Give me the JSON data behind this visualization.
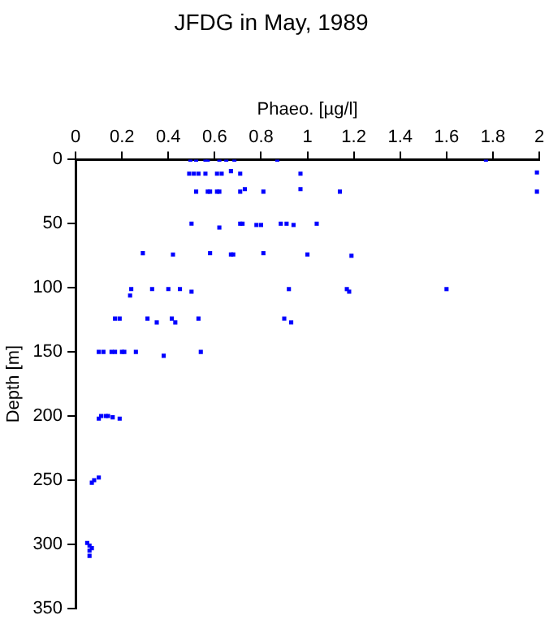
{
  "chart_data": {
    "type": "scatter",
    "title": "JFDG in May, 1989",
    "xlabel": "Phaeo. [µg/l]",
    "ylabel": "Depth [m]",
    "xlim": [
      0,
      2
    ],
    "xticks": [
      0,
      0.2,
      0.4,
      0.6,
      0.8,
      1,
      1.2,
      1.4,
      1.6,
      1.8,
      2
    ],
    "ylim": [
      350,
      0
    ],
    "yticks": [
      0,
      50,
      100,
      150,
      200,
      250,
      300,
      350
    ],
    "grid": false,
    "legend": false,
    "marker": "square",
    "series": [
      {
        "color": "#0000ff",
        "x": [
          0.495,
          0.52,
          0.56,
          0.57,
          0.62,
          0.65,
          0.685,
          0.87,
          1.77,
          0.49,
          0.51,
          0.53,
          0.56,
          0.61,
          0.63,
          0.67,
          0.71,
          0.97,
          1.99,
          0.52,
          0.57,
          0.58,
          0.61,
          0.62,
          0.71,
          0.73,
          0.81,
          0.97,
          1.14,
          1.99,
          0.5,
          0.62,
          0.71,
          0.72,
          0.78,
          0.8,
          0.885,
          0.91,
          0.94,
          1.04,
          0.29,
          0.42,
          0.58,
          0.67,
          0.68,
          0.81,
          1.0,
          1.19,
          0.24,
          0.235,
          0.33,
          0.4,
          0.45,
          0.5,
          0.92,
          1.17,
          1.18,
          1.6,
          0.17,
          0.19,
          0.31,
          0.35,
          0.415,
          0.43,
          0.53,
          0.9,
          0.93,
          0.1,
          0.12,
          0.155,
          0.17,
          0.2,
          0.21,
          0.26,
          0.38,
          0.54,
          0.1,
          0.11,
          0.13,
          0.14,
          0.16,
          0.19,
          0.07,
          0.08,
          0.1,
          0.05,
          0.06,
          0.06,
          0.07,
          0.06
        ],
        "values": [
          0,
          0,
          0,
          0,
          0,
          0,
          0,
          0,
          0,
          11,
          11,
          11,
          11,
          11,
          11,
          9,
          11,
          11,
          10,
          25,
          25,
          25,
          25,
          25,
          25,
          23,
          25,
          23,
          25,
          25,
          50,
          53,
          50,
          50,
          51,
          51,
          50,
          50,
          51,
          50,
          73,
          74,
          73,
          74,
          74,
          73,
          74,
          75,
          101,
          106,
          101,
          101,
          101,
          103,
          101,
          101,
          103,
          101,
          124,
          124,
          124,
          127,
          124,
          127,
          124,
          124,
          127,
          150,
          150,
          150,
          150,
          150,
          150,
          150,
          153,
          150,
          202,
          200,
          200,
          200,
          201,
          202,
          252,
          250,
          248,
          299,
          301,
          305,
          303,
          309
        ]
      }
    ]
  }
}
